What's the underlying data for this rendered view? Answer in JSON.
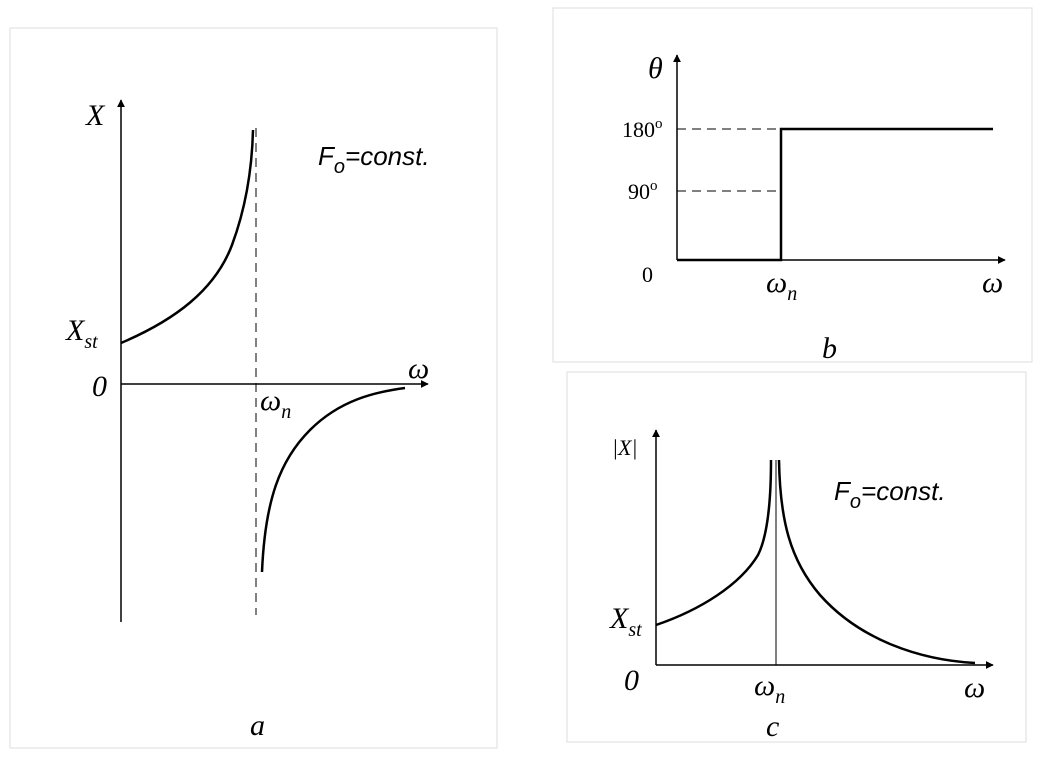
{
  "panel_a": {
    "y_axis": "X",
    "x_axis": "ω",
    "origin": "0",
    "x_static": {
      "base": "X",
      "sub": "st"
    },
    "omega_n": {
      "base": "ω",
      "sub": "n"
    },
    "force": {
      "base": "F",
      "sub": "o",
      "rest": "=const."
    },
    "caption": "a"
  },
  "panel_b": {
    "y_axis": "θ",
    "x_axis": "ω",
    "origin": "0",
    "tick_180": {
      "number": "180",
      "degree": "o"
    },
    "tick_90": {
      "number": "90",
      "degree": "o"
    },
    "omega_n": {
      "base": "ω",
      "sub": "n"
    },
    "caption": "b"
  },
  "panel_c": {
    "y_axis": "|X|",
    "x_axis": "ω",
    "origin": "0",
    "x_static": {
      "base": "X",
      "sub": "st"
    },
    "omega_n": {
      "base": "ω",
      "sub": "n"
    },
    "force": {
      "base": "F",
      "sub": "o",
      "rest": "=const."
    },
    "caption": "c"
  }
}
